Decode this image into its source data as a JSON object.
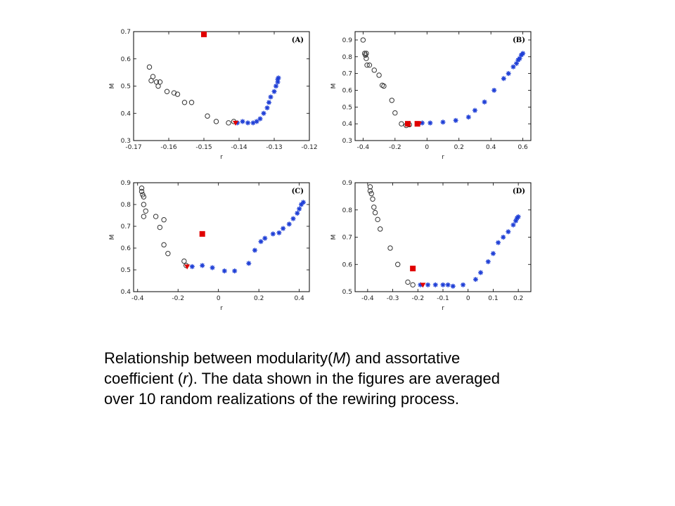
{
  "caption": {
    "line1_pre": "Relationship between modularity(",
    "line1_M": "M",
    "line1_post": ") and assortative",
    "line2_pre": "coefficient (",
    "line2_r": "r",
    "line2_post": "). The data shown in the figures are averaged",
    "line3": "over 10 random realizations of the rewiring process."
  },
  "colors": {
    "circle": "#333333",
    "star": "#1f3fd6",
    "square": "#e00000",
    "triangle": "#e00000"
  },
  "chart_data": [
    {
      "type": "scatter",
      "panel_label": "(A)",
      "xlabel": "r",
      "ylabel": "M",
      "xlim": [
        -0.17,
        -0.12
      ],
      "ylim": [
        0.3,
        0.7
      ],
      "xticks": [
        -0.17,
        -0.16,
        -0.15,
        -0.14,
        -0.13,
        -0.12
      ],
      "xticklabels": [
        "-0.17",
        "-0.16",
        "-0.15",
        "-0.14",
        "-0.13",
        "-0.12"
      ],
      "yticks": [
        0.3,
        0.4,
        0.5,
        0.6,
        0.7
      ],
      "yticklabels": [
        "0.3",
        "0.4",
        "0.5",
        "0.6",
        "0.7"
      ],
      "series": [
        {
          "marker": "circle",
          "points": [
            [
              -0.1655,
              0.57
            ],
            [
              -0.1645,
              0.535
            ],
            [
              -0.165,
              0.52
            ],
            [
              -0.1635,
              0.515
            ],
            [
              -0.1625,
              0.515
            ],
            [
              -0.163,
              0.5
            ],
            [
              -0.1605,
              0.48
            ],
            [
              -0.1585,
              0.475
            ],
            [
              -0.1575,
              0.47
            ],
            [
              -0.1555,
              0.44
            ],
            [
              -0.1535,
              0.44
            ],
            [
              -0.149,
              0.39
            ],
            [
              -0.1465,
              0.37
            ],
            [
              -0.143,
              0.365
            ],
            [
              -0.1415,
              0.37
            ]
          ]
        },
        {
          "marker": "star",
          "points": [
            [
              -0.1405,
              0.365
            ],
            [
              -0.139,
              0.37
            ],
            [
              -0.1375,
              0.365
            ],
            [
              -0.136,
              0.365
            ],
            [
              -0.135,
              0.37
            ],
            [
              -0.134,
              0.38
            ],
            [
              -0.133,
              0.4
            ],
            [
              -0.132,
              0.42
            ],
            [
              -0.1315,
              0.44
            ],
            [
              -0.131,
              0.46
            ],
            [
              -0.13,
              0.48
            ],
            [
              -0.1295,
              0.5
            ],
            [
              -0.129,
              0.515
            ],
            [
              -0.129,
              0.525
            ],
            [
              -0.1288,
              0.53
            ]
          ]
        },
        {
          "marker": "square",
          "points": [
            [
              -0.15,
              0.69
            ]
          ]
        },
        {
          "marker": "triangle",
          "points": [
            [
              -0.141,
              0.365
            ]
          ]
        }
      ]
    },
    {
      "type": "scatter",
      "panel_label": "(B)",
      "xlabel": "r",
      "ylabel": "M",
      "xlim": [
        -0.45,
        0.65
      ],
      "ylim": [
        0.3,
        0.95
      ],
      "xticks": [
        -0.4,
        -0.2,
        0,
        0.2,
        0.4,
        0.6
      ],
      "xticklabels": [
        "-0.4",
        "-0.2",
        "0",
        "0.2",
        "0.4",
        "0.6"
      ],
      "yticks": [
        0.3,
        0.4,
        0.5,
        0.6,
        0.7,
        0.8,
        0.9
      ],
      "yticklabels": [
        "0.3",
        "0.4",
        "0.5",
        "0.6",
        "0.7",
        "0.8",
        "0.9"
      ],
      "series": [
        {
          "marker": "circle",
          "points": [
            [
              -0.4,
              0.9
            ],
            [
              -0.39,
              0.82
            ],
            [
              -0.385,
              0.81
            ],
            [
              -0.38,
              0.79
            ],
            [
              -0.38,
              0.82
            ],
            [
              -0.375,
              0.75
            ],
            [
              -0.36,
              0.75
            ],
            [
              -0.33,
              0.72
            ],
            [
              -0.3,
              0.69
            ],
            [
              -0.28,
              0.63
            ],
            [
              -0.27,
              0.625
            ],
            [
              -0.22,
              0.54
            ],
            [
              -0.2,
              0.465
            ],
            [
              -0.16,
              0.4
            ],
            [
              -0.13,
              0.39
            ],
            [
              -0.11,
              0.395
            ]
          ]
        },
        {
          "marker": "star",
          "points": [
            [
              -0.03,
              0.405
            ],
            [
              0.02,
              0.405
            ],
            [
              0.1,
              0.41
            ],
            [
              0.18,
              0.42
            ],
            [
              0.26,
              0.44
            ],
            [
              0.3,
              0.48
            ],
            [
              0.36,
              0.53
            ],
            [
              0.42,
              0.6
            ],
            [
              0.48,
              0.67
            ],
            [
              0.51,
              0.7
            ],
            [
              0.54,
              0.74
            ],
            [
              0.56,
              0.76
            ],
            [
              0.57,
              0.78
            ],
            [
              0.58,
              0.79
            ],
            [
              0.59,
              0.81
            ],
            [
              0.6,
              0.82
            ]
          ]
        },
        {
          "marker": "square",
          "points": [
            [
              -0.12,
              0.4
            ],
            [
              -0.06,
              0.4
            ]
          ]
        },
        {
          "marker": "triangle",
          "points": [
            [
              -0.05,
              0.4
            ]
          ]
        }
      ]
    },
    {
      "type": "scatter",
      "panel_label": "(C)",
      "xlabel": "r",
      "ylabel": "M",
      "xlim": [
        -0.42,
        0.45
      ],
      "ylim": [
        0.4,
        0.9
      ],
      "xticks": [
        -0.4,
        -0.2,
        0,
        0.2,
        0.4
      ],
      "xticklabels": [
        "-0.4",
        "-0.2",
        "0",
        "0.2",
        "0.4"
      ],
      "yticks": [
        0.4,
        0.5,
        0.6,
        0.7,
        0.8,
        0.9
      ],
      "yticklabels": [
        "0.4",
        "0.5",
        "0.6",
        "0.7",
        "0.8",
        "0.9"
      ],
      "series": [
        {
          "marker": "circle",
          "points": [
            [
              -0.38,
              0.875
            ],
            [
              -0.38,
              0.86
            ],
            [
              -0.375,
              0.845
            ],
            [
              -0.37,
              0.835
            ],
            [
              -0.37,
              0.8
            ],
            [
              -0.36,
              0.77
            ],
            [
              -0.37,
              0.745
            ],
            [
              -0.31,
              0.745
            ],
            [
              -0.29,
              0.695
            ],
            [
              -0.27,
              0.73
            ],
            [
              -0.27,
              0.615
            ],
            [
              -0.25,
              0.575
            ],
            [
              -0.17,
              0.54
            ],
            [
              -0.16,
              0.52
            ]
          ]
        },
        {
          "marker": "star",
          "points": [
            [
              -0.13,
              0.515
            ],
            [
              -0.08,
              0.52
            ],
            [
              -0.03,
              0.51
            ],
            [
              0.03,
              0.495
            ],
            [
              0.08,
              0.495
            ],
            [
              0.15,
              0.53
            ],
            [
              0.18,
              0.59
            ],
            [
              0.21,
              0.63
            ],
            [
              0.23,
              0.645
            ],
            [
              0.27,
              0.665
            ],
            [
              0.3,
              0.67
            ],
            [
              0.32,
              0.69
            ],
            [
              0.35,
              0.71
            ],
            [
              0.37,
              0.735
            ],
            [
              0.39,
              0.76
            ],
            [
              0.4,
              0.78
            ],
            [
              0.41,
              0.8
            ],
            [
              0.42,
              0.81
            ]
          ]
        },
        {
          "marker": "square",
          "points": [
            [
              -0.08,
              0.665
            ]
          ]
        },
        {
          "marker": "triangle",
          "points": [
            [
              -0.155,
              0.515
            ]
          ]
        }
      ]
    },
    {
      "type": "scatter",
      "panel_label": "(D)",
      "xlabel": "r",
      "ylabel": "M",
      "xlim": [
        -0.45,
        0.25
      ],
      "ylim": [
        0.5,
        0.9
      ],
      "xticks": [
        -0.4,
        -0.3,
        -0.2,
        -0.1,
        0,
        0.1,
        0.2
      ],
      "xticklabels": [
        "-0.4",
        "-0.3",
        "-0.2",
        "-0.1",
        "0",
        "0.1",
        "0.2"
      ],
      "yticks": [
        0.5,
        0.6,
        0.7,
        0.8,
        0.9
      ],
      "yticklabels": [
        "0.5",
        "0.6",
        "0.7",
        "0.8",
        "0.9"
      ],
      "series": [
        {
          "marker": "circle",
          "points": [
            [
              -0.39,
              0.885
            ],
            [
              -0.39,
              0.87
            ],
            [
              -0.385,
              0.86
            ],
            [
              -0.38,
              0.84
            ],
            [
              -0.375,
              0.81
            ],
            [
              -0.37,
              0.79
            ],
            [
              -0.36,
              0.765
            ],
            [
              -0.35,
              0.73
            ],
            [
              -0.31,
              0.66
            ],
            [
              -0.28,
              0.6
            ],
            [
              -0.24,
              0.535
            ],
            [
              -0.22,
              0.525
            ]
          ]
        },
        {
          "marker": "star",
          "points": [
            [
              -0.19,
              0.525
            ],
            [
              -0.16,
              0.525
            ],
            [
              -0.13,
              0.525
            ],
            [
              -0.1,
              0.525
            ],
            [
              -0.08,
              0.525
            ],
            [
              -0.06,
              0.52
            ],
            [
              -0.02,
              0.525
            ],
            [
              0.03,
              0.545
            ],
            [
              0.05,
              0.57
            ],
            [
              0.08,
              0.61
            ],
            [
              0.1,
              0.64
            ],
            [
              0.12,
              0.68
            ],
            [
              0.14,
              0.7
            ],
            [
              0.16,
              0.72
            ],
            [
              0.18,
              0.745
            ],
            [
              0.19,
              0.76
            ],
            [
              0.195,
              0.77
            ],
            [
              0.2,
              0.775
            ]
          ]
        },
        {
          "marker": "square",
          "points": [
            [
              -0.22,
              0.585
            ]
          ]
        },
        {
          "marker": "triangle",
          "points": [
            [
              -0.18,
              0.525
            ]
          ]
        }
      ]
    }
  ]
}
